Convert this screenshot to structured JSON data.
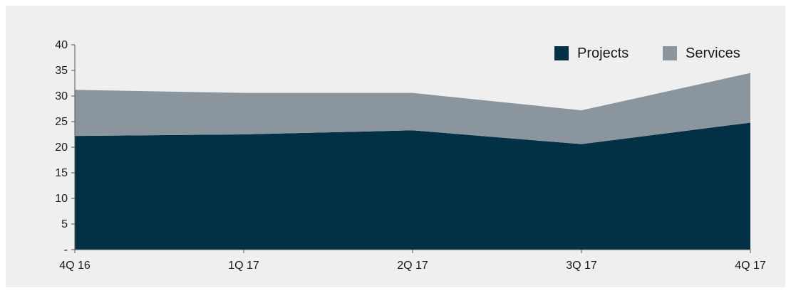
{
  "chart_data": {
    "type": "area",
    "stacked": true,
    "title": "",
    "xlabel": "",
    "ylabel": "",
    "categories": [
      "4Q 16",
      "1Q 17",
      "2Q 17",
      "3Q 17",
      "4Q 17"
    ],
    "ylim": [
      0,
      40
    ],
    "yticks": [
      0,
      5,
      10,
      15,
      20,
      25,
      30,
      35,
      40
    ],
    "ytick_labels": [
      "-",
      "5",
      "10",
      "15",
      "20",
      "25",
      "30",
      "35",
      "40"
    ],
    "grid": false,
    "legend_position": "top-right",
    "series": [
      {
        "name": "Projects",
        "color": "#023045",
        "values": [
          22.2,
          22.5,
          23.3,
          20.6,
          24.8
        ]
      },
      {
        "name": "Services",
        "color": "#8a959d",
        "values": [
          9.0,
          8.1,
          7.3,
          6.6,
          9.7
        ]
      }
    ]
  }
}
